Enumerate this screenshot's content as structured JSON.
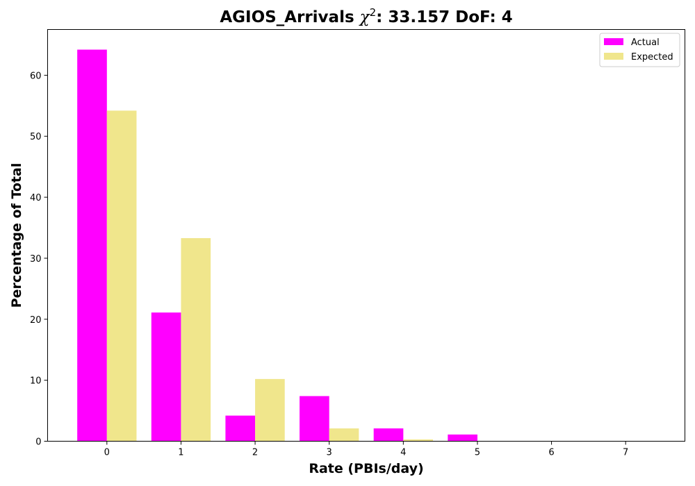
{
  "chart_data": {
    "type": "bar",
    "title_prefix": "AGIOS_Arrivals ",
    "title_symbol": "χ",
    "title_superscript": "2",
    "title_suffix": ": 33.157 DoF: 4",
    "xlabel": "Rate (PBIs/day)",
    "ylabel": "Percentage of Total",
    "categories": [
      0,
      1,
      2,
      3,
      4,
      5,
      6,
      7
    ],
    "series": [
      {
        "name": "Actual",
        "color": "#ff00ff",
        "values": [
          64.2,
          21.1,
          4.2,
          7.4,
          2.1,
          1.1,
          0,
          0
        ]
      },
      {
        "name": "Expected",
        "color": "#f0e68c",
        "values": [
          54.2,
          33.3,
          10.2,
          2.1,
          0.3,
          0.05,
          0.01,
          0
        ]
      }
    ],
    "xlim": [
      -0.8,
      7.8
    ],
    "ylim": [
      0,
      67.5
    ],
    "yticks": [
      0,
      10,
      20,
      30,
      40,
      50,
      60
    ],
    "grid": false,
    "legend_position": "top-right"
  }
}
